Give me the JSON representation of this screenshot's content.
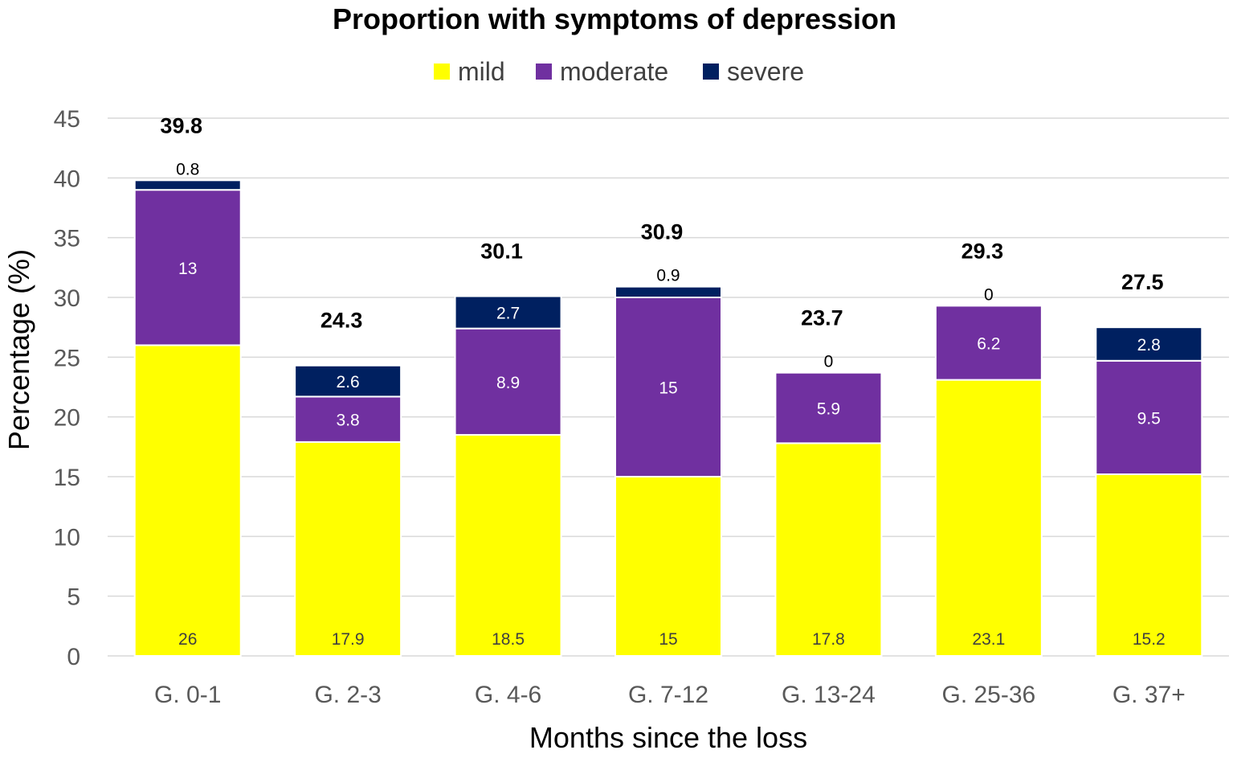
{
  "chart_data": {
    "type": "bar",
    "stacked": true,
    "title": "Proportion with symptoms of depression",
    "xlabel": "Months since the loss",
    "ylabel": "Percentage (%)",
    "ylim": [
      0,
      45
    ],
    "yticks": [
      0,
      5,
      10,
      15,
      20,
      25,
      30,
      35,
      40,
      45
    ],
    "grid": true,
    "legend_position": "top-center",
    "categories": [
      "G. 0-1",
      "G. 2-3",
      "G. 4-6",
      "G. 7-12",
      "G. 13-24",
      "G. 25-36",
      "G. 37+"
    ],
    "series": [
      {
        "name": "mild",
        "color": "#ffff00",
        "label_color": "#404040",
        "values": [
          26,
          17.9,
          18.5,
          15,
          17.8,
          23.1,
          15.2
        ]
      },
      {
        "name": "moderate",
        "color": "#7030a0",
        "label_color": "#ffffff",
        "values": [
          13,
          3.8,
          8.9,
          15,
          5.9,
          6.2,
          9.5
        ]
      },
      {
        "name": "severe",
        "color": "#002060",
        "label_color": "#ffffff",
        "values": [
          0.8,
          2.6,
          2.7,
          0.9,
          0,
          0,
          2.8
        ]
      }
    ],
    "totals": [
      39.8,
      24.3,
      30.1,
      30.9,
      23.7,
      29.3,
      27.5
    ]
  }
}
